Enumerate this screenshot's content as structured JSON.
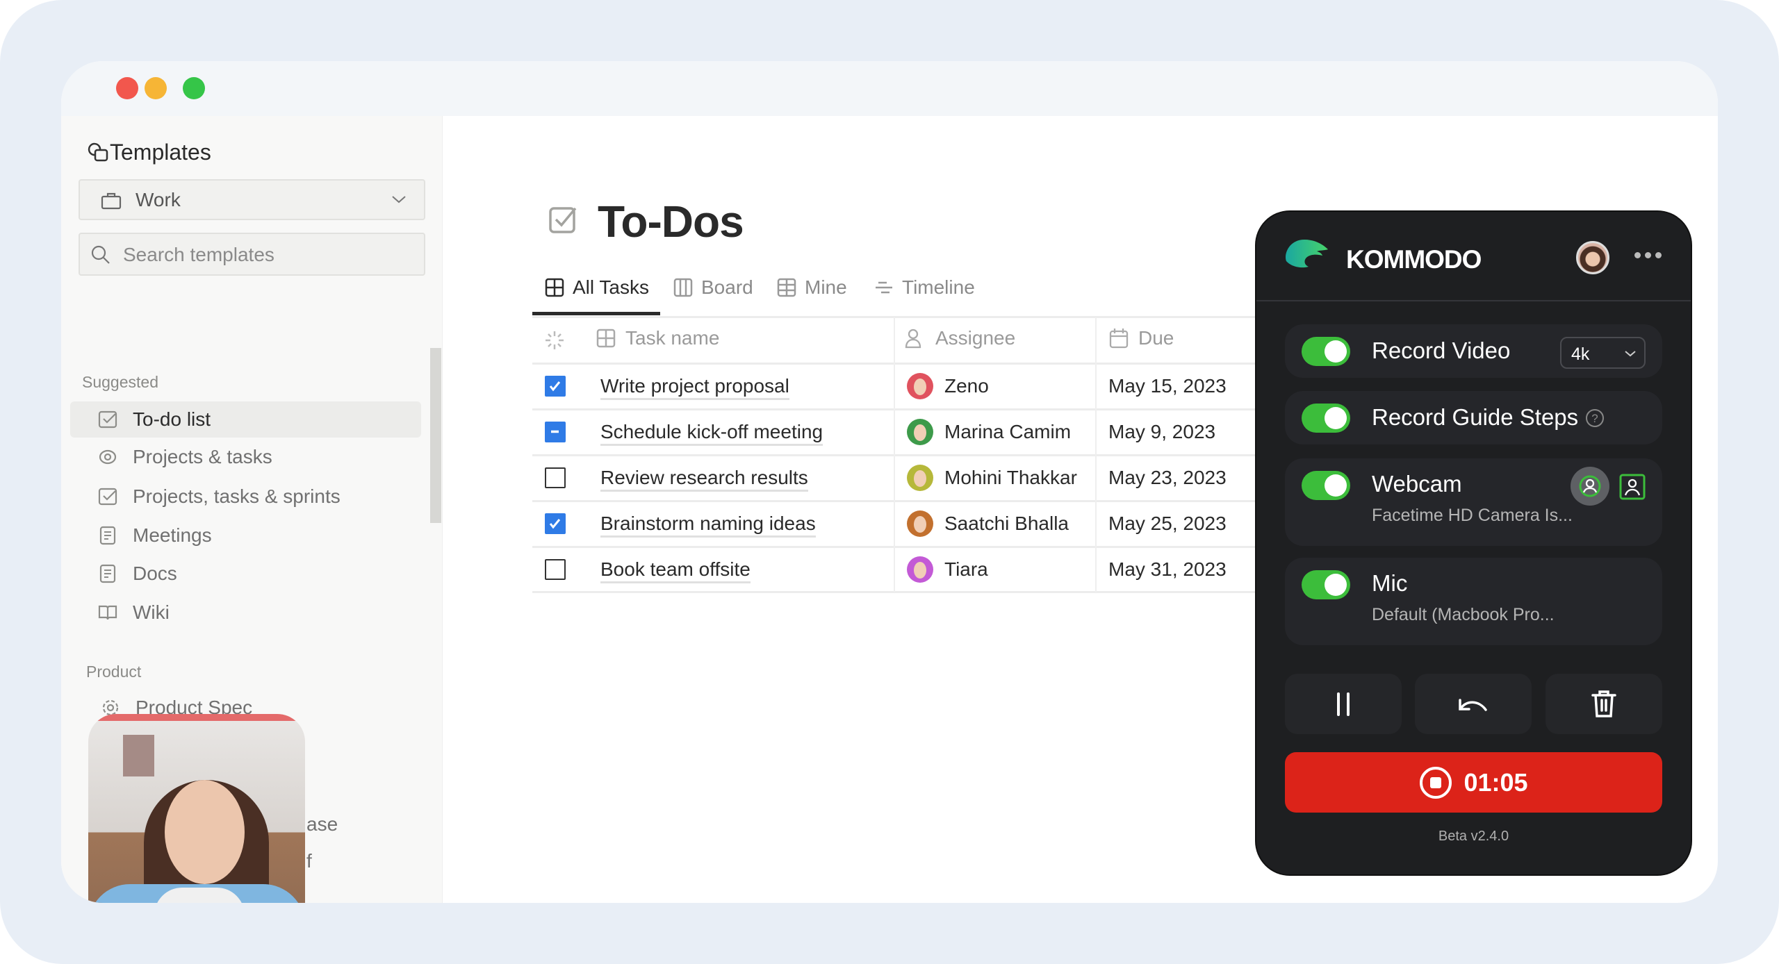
{
  "sidebar": {
    "title": "Templates",
    "workspace": "Work",
    "search_placeholder": "Search templates",
    "suggested_label": "Suggested",
    "items": [
      {
        "label": "To-do list",
        "icon": "checkbox-icon",
        "selected": true
      },
      {
        "label": "Projects & tasks",
        "icon": "target-icon"
      },
      {
        "label": "Projects, tasks & sprints",
        "icon": "checkbox-icon"
      },
      {
        "label": "Meetings",
        "icon": "document-icon"
      },
      {
        "label": "Docs",
        "icon": "document-icon"
      },
      {
        "label": "Wiki",
        "icon": "book-icon"
      }
    ],
    "product_label": "Product",
    "product_items": [
      {
        "label": "Product Spec",
        "icon": "gear-icon"
      }
    ],
    "partial_1": "ase",
    "partial_2": "f"
  },
  "main": {
    "title": "To-Dos",
    "tabs": [
      {
        "label": "All Tasks",
        "active": true
      },
      {
        "label": "Board"
      },
      {
        "label": "Mine"
      },
      {
        "label": "Timeline"
      }
    ],
    "columns": [
      "Task name",
      "Assignee",
      "Due"
    ],
    "rows": [
      {
        "state": "checked",
        "task": "Write project proposal",
        "assignee": "Zeno",
        "due": "May 15, 2023",
        "avatar_color": "#e0525e"
      },
      {
        "state": "indeterminate",
        "task": "Schedule kick-off meeting",
        "assignee": "Marina Camim",
        "due": "May 9, 2023",
        "avatar_color": "#3d9a4a"
      },
      {
        "state": "unchecked",
        "task": "Review research results",
        "assignee": "Mohini Thakkar",
        "due": "May 23, 2023",
        "avatar_color": "#b6b83a"
      },
      {
        "state": "checked",
        "task": "Brainstorm naming ideas",
        "assignee": "Saatchi Bhalla",
        "due": "May 25, 2023",
        "avatar_color": "#c2702e"
      },
      {
        "state": "unchecked",
        "task": "Book team offsite",
        "assignee": "Tiara",
        "due": "May 31, 2023",
        "avatar_color": "#c35ad6"
      }
    ]
  },
  "recorder": {
    "brand": "KOMMODO",
    "record_video": {
      "label": "Record Video",
      "enabled": true,
      "quality": "4k"
    },
    "guide_steps": {
      "label": "Record Guide Steps",
      "enabled": true
    },
    "webcam": {
      "label": "Webcam",
      "enabled": true,
      "device": "Facetime HD Camera Is..."
    },
    "mic": {
      "label": "Mic",
      "enabled": true,
      "device": "Default (Macbook Pro..."
    },
    "timer": "01:05",
    "version": "Beta v2.4.0",
    "colors": {
      "toggle": "#3cbd3b",
      "stop": "#dc2319",
      "panel": "#1e1f21"
    }
  }
}
